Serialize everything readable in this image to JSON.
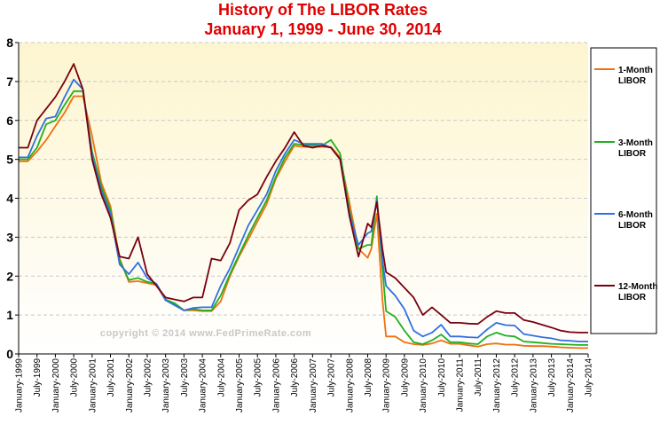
{
  "chart_data": {
    "type": "line",
    "title": "History of The LIBOR Rates",
    "subtitle": "January 1, 1999 - June 30, 2014",
    "watermark": "copyright © 2014 www.FedPrimeRate.com",
    "ylim": [
      0,
      8
    ],
    "yticks": [
      "0",
      "1",
      "2",
      "3",
      "4",
      "5",
      "6",
      "7",
      "8"
    ],
    "grid": true,
    "legend_position": "right",
    "xlim": [
      1999.0,
      2014.5
    ],
    "xticks": [
      "January-1999",
      "July-1999",
      "January-2000",
      "July-2000",
      "January-2001",
      "July-2001",
      "January-2002",
      "July-2002",
      "January-2003",
      "July-2003",
      "January-2004",
      "July-2004",
      "January-2005",
      "July-2005",
      "January-2006",
      "July-2006",
      "January-2007",
      "July-2007",
      "January-2008",
      "July-2008",
      "January-2009",
      "July-2009",
      "January-2010",
      "July-2010",
      "January-2011",
      "July-2011",
      "January-2012",
      "July-2012",
      "January-2013",
      "July-2013",
      "January-2014",
      "July-2014"
    ],
    "series": [
      {
        "name": "1-Month LIBOR",
        "color": "#f07010",
        "x": [
          1999.0,
          1999.25,
          1999.5,
          1999.75,
          2000.0,
          2000.25,
          2000.5,
          2000.75,
          2001.0,
          2001.25,
          2001.5,
          2001.75,
          2002.0,
          2002.25,
          2002.5,
          2002.75,
          2003.0,
          2003.25,
          2003.5,
          2003.75,
          2004.0,
          2004.25,
          2004.5,
          2004.75,
          2005.0,
          2005.25,
          2005.5,
          2005.75,
          2006.0,
          2006.25,
          2006.5,
          2006.75,
          2007.0,
          2007.25,
          2007.5,
          2007.75,
          2008.0,
          2008.25,
          2008.5,
          2008.6,
          2008.75,
          2008.9,
          2009.0,
          2009.25,
          2009.5,
          2009.75,
          2010.0,
          2010.25,
          2010.5,
          2010.75,
          2011.0,
          2011.25,
          2011.5,
          2011.75,
          2012.0,
          2012.25,
          2012.5,
          2012.75,
          2013.0,
          2013.25,
          2013.5,
          2013.75,
          2014.0,
          2014.25,
          2014.5
        ],
        "y": [
          4.95,
          4.95,
          5.2,
          5.5,
          5.85,
          6.2,
          6.62,
          6.62,
          5.6,
          4.4,
          3.8,
          2.45,
          1.85,
          1.87,
          1.82,
          1.77,
          1.38,
          1.3,
          1.12,
          1.12,
          1.1,
          1.1,
          1.35,
          2.0,
          2.5,
          2.95,
          3.4,
          3.85,
          4.5,
          4.95,
          5.35,
          5.32,
          5.32,
          5.32,
          5.32,
          5.05,
          3.9,
          2.7,
          2.47,
          2.7,
          3.6,
          1.4,
          0.45,
          0.45,
          0.3,
          0.25,
          0.23,
          0.27,
          0.35,
          0.26,
          0.26,
          0.22,
          0.19,
          0.25,
          0.27,
          0.24,
          0.24,
          0.21,
          0.2,
          0.2,
          0.19,
          0.17,
          0.16,
          0.15,
          0.15
        ]
      },
      {
        "name": "3-Month LIBOR",
        "color": "#20b020",
        "x": [
          1999.0,
          1999.25,
          1999.5,
          1999.75,
          2000.0,
          2000.25,
          2000.5,
          2000.75,
          2001.0,
          2001.25,
          2001.5,
          2001.75,
          2002.0,
          2002.25,
          2002.5,
          2002.75,
          2003.0,
          2003.25,
          2003.5,
          2003.75,
          2004.0,
          2004.25,
          2004.5,
          2004.75,
          2005.0,
          2005.25,
          2005.5,
          2005.75,
          2006.0,
          2006.25,
          2006.5,
          2006.75,
          2007.0,
          2007.25,
          2007.5,
          2007.75,
          2008.0,
          2008.25,
          2008.5,
          2008.6,
          2008.75,
          2008.9,
          2009.0,
          2009.25,
          2009.5,
          2009.75,
          2010.0,
          2010.25,
          2010.5,
          2010.75,
          2011.0,
          2011.25,
          2011.5,
          2011.75,
          2012.0,
          2012.25,
          2012.5,
          2012.75,
          2013.0,
          2013.25,
          2013.5,
          2013.75,
          2014.0,
          2014.25,
          2014.5
        ],
        "y": [
          5.0,
          5.0,
          5.3,
          5.9,
          6.0,
          6.4,
          6.75,
          6.75,
          5.2,
          4.3,
          3.7,
          2.4,
          1.9,
          1.95,
          1.85,
          1.8,
          1.4,
          1.3,
          1.12,
          1.15,
          1.12,
          1.12,
          1.5,
          2.05,
          2.55,
          3.05,
          3.5,
          3.95,
          4.55,
          5.05,
          5.4,
          5.37,
          5.36,
          5.35,
          5.5,
          5.15,
          3.7,
          2.7,
          2.8,
          2.8,
          4.05,
          2.2,
          1.1,
          0.95,
          0.6,
          0.3,
          0.25,
          0.35,
          0.5,
          0.3,
          0.3,
          0.27,
          0.25,
          0.45,
          0.55,
          0.47,
          0.45,
          0.32,
          0.3,
          0.28,
          0.26,
          0.25,
          0.24,
          0.23,
          0.23
        ]
      },
      {
        "name": "6-Month LIBOR",
        "color": "#3070e0",
        "x": [
          1999.0,
          1999.25,
          1999.5,
          1999.75,
          2000.0,
          2000.25,
          2000.5,
          2000.75,
          2001.0,
          2001.25,
          2001.5,
          2001.75,
          2002.0,
          2002.25,
          2002.5,
          2002.75,
          2003.0,
          2003.25,
          2003.5,
          2003.75,
          2004.0,
          2004.25,
          2004.5,
          2004.75,
          2005.0,
          2005.25,
          2005.5,
          2005.75,
          2006.0,
          2006.25,
          2006.5,
          2006.75,
          2007.0,
          2007.25,
          2007.5,
          2007.75,
          2008.0,
          2008.25,
          2008.5,
          2008.6,
          2008.75,
          2008.9,
          2009.0,
          2009.25,
          2009.5,
          2009.75,
          2010.0,
          2010.25,
          2010.5,
          2010.75,
          2011.0,
          2011.25,
          2011.5,
          2011.75,
          2012.0,
          2012.25,
          2012.5,
          2012.75,
          2013.0,
          2013.25,
          2013.5,
          2013.75,
          2014.0,
          2014.25,
          2014.5
        ],
        "y": [
          5.05,
          5.05,
          5.6,
          6.05,
          6.1,
          6.6,
          7.05,
          6.8,
          5.1,
          4.2,
          3.6,
          2.3,
          2.05,
          2.35,
          1.95,
          1.8,
          1.38,
          1.25,
          1.12,
          1.18,
          1.2,
          1.2,
          1.75,
          2.2,
          2.75,
          3.3,
          3.7,
          4.1,
          4.7,
          5.15,
          5.5,
          5.4,
          5.4,
          5.4,
          5.3,
          5.0,
          3.6,
          2.8,
          3.1,
          3.15,
          3.95,
          2.4,
          1.75,
          1.5,
          1.15,
          0.6,
          0.45,
          0.55,
          0.75,
          0.45,
          0.45,
          0.43,
          0.42,
          0.63,
          0.8,
          0.74,
          0.73,
          0.51,
          0.47,
          0.43,
          0.4,
          0.35,
          0.34,
          0.32,
          0.32
        ]
      },
      {
        "name": "12-Month LIBOR",
        "color": "#7a0010",
        "x": [
          1999.0,
          1999.25,
          1999.5,
          1999.75,
          2000.0,
          2000.25,
          2000.5,
          2000.75,
          2001.0,
          2001.25,
          2001.5,
          2001.75,
          2002.0,
          2002.25,
          2002.5,
          2002.75,
          2003.0,
          2003.25,
          2003.5,
          2003.75,
          2004.0,
          2004.25,
          2004.5,
          2004.75,
          2005.0,
          2005.25,
          2005.5,
          2005.75,
          2006.0,
          2006.25,
          2006.5,
          2006.75,
          2007.0,
          2007.25,
          2007.5,
          2007.75,
          2008.0,
          2008.25,
          2008.5,
          2008.6,
          2008.75,
          2008.9,
          2009.0,
          2009.25,
          2009.5,
          2009.75,
          2010.0,
          2010.25,
          2010.5,
          2010.75,
          2011.0,
          2011.25,
          2011.5,
          2011.75,
          2012.0,
          2012.25,
          2012.5,
          2012.75,
          2013.0,
          2013.25,
          2013.5,
          2013.75,
          2014.0,
          2014.25,
          2014.5
        ],
        "y": [
          5.3,
          5.3,
          6.0,
          6.3,
          6.6,
          7.0,
          7.45,
          6.8,
          5.0,
          4.1,
          3.5,
          2.5,
          2.45,
          3.0,
          2.05,
          1.75,
          1.45,
          1.4,
          1.35,
          1.45,
          1.45,
          2.45,
          2.4,
          2.85,
          3.7,
          3.95,
          4.1,
          4.55,
          4.95,
          5.3,
          5.7,
          5.35,
          5.3,
          5.35,
          5.3,
          5.0,
          3.55,
          2.5,
          3.35,
          3.25,
          3.9,
          2.7,
          2.1,
          1.95,
          1.7,
          1.45,
          1.0,
          1.2,
          1.0,
          0.8,
          0.8,
          0.78,
          0.77,
          0.95,
          1.1,
          1.05,
          1.05,
          0.87,
          0.82,
          0.75,
          0.68,
          0.6,
          0.56,
          0.55,
          0.55
        ]
      }
    ]
  }
}
